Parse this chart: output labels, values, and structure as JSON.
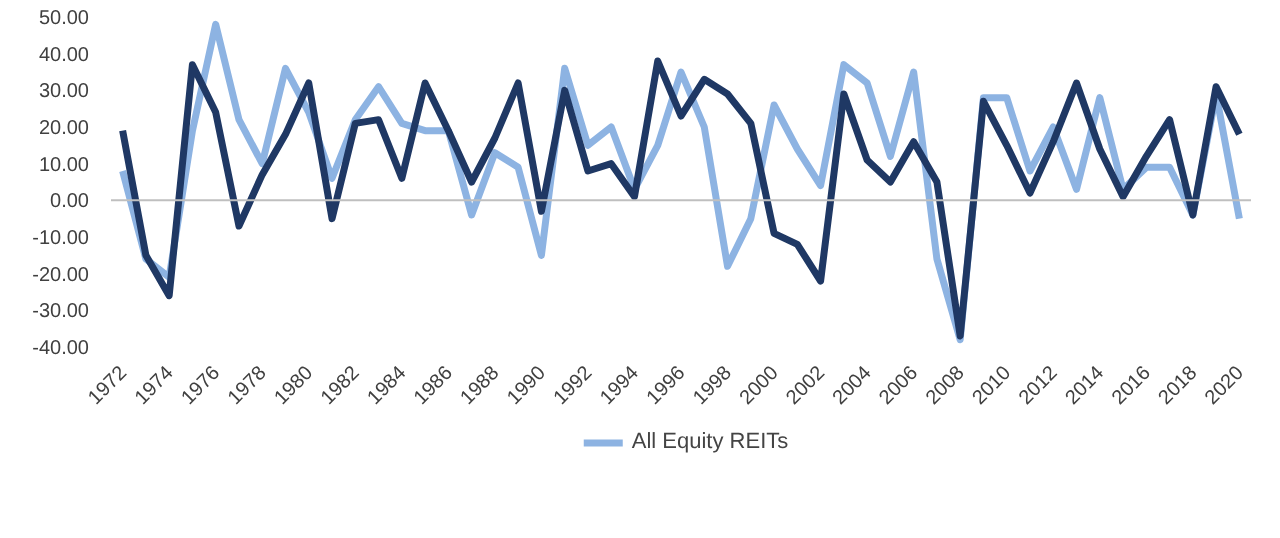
{
  "chart_data": {
    "type": "line",
    "categories": [
      "1972",
      null,
      "1974",
      null,
      "1976",
      null,
      "1978",
      null,
      "1980",
      null,
      "1982",
      null,
      "1984",
      null,
      "1986",
      null,
      "1988",
      null,
      "1990",
      null,
      "1992",
      null,
      "1994",
      null,
      "1996",
      null,
      "1998",
      null,
      "2000",
      null,
      "2002",
      null,
      "2004",
      null,
      "2006",
      null,
      "2008",
      null,
      "2010",
      null,
      "2012",
      null,
      "2014",
      null,
      "2016",
      null,
      "2018",
      null,
      "2020"
    ],
    "series": [
      {
        "name": "All Equity REITs",
        "color": "#8db3e2",
        "values": [
          8,
          -16,
          -21,
          19,
          48,
          22,
          10,
          36,
          24,
          6,
          22,
          31,
          21,
          19,
          19,
          -4,
          13,
          9,
          -15,
          36,
          15,
          20,
          3,
          15,
          35,
          20,
          -18,
          -5,
          26,
          14,
          4,
          37,
          32,
          12,
          35,
          -16,
          -38,
          28,
          28,
          8,
          20,
          3,
          28,
          3,
          9,
          9,
          -4,
          29,
          -5
        ]
      },
      {
        "color": "#1f3864",
        "values": [
          19,
          -15,
          -26,
          37,
          24,
          -7,
          7,
          18,
          32,
          -5,
          21,
          22,
          6,
          32,
          19,
          5,
          17,
          32,
          -3,
          30,
          8,
          10,
          1,
          38,
          23,
          33,
          29,
          21,
          -9,
          -12,
          -22,
          29,
          11,
          5,
          16,
          5,
          -37,
          27,
          15,
          2,
          16,
          32,
          14,
          1,
          12,
          22,
          -4,
          31,
          18
        ]
      }
    ],
    "ylim": [
      -40,
      50
    ],
    "yticks": [
      {
        "value": -40,
        "label": "-40.00"
      },
      {
        "value": -30,
        "label": "-30.00"
      },
      {
        "value": -20,
        "label": "-20.00"
      },
      {
        "value": -10,
        "label": "-10.00"
      },
      {
        "value": 0,
        "label": "0.00"
      },
      {
        "value": 10,
        "label": "10.00"
      },
      {
        "value": 20,
        "label": "20.00"
      },
      {
        "value": 30,
        "label": "30.00"
      },
      {
        "value": 40,
        "label": "40.00"
      },
      {
        "value": 50,
        "label": "50.00"
      }
    ],
    "ref_lines": [
      {
        "axis": "y",
        "value": 0,
        "color": "#bfbfbf"
      }
    ],
    "grid": false,
    "legend": "bottom",
    "marker": "none",
    "line_style": "solid"
  }
}
